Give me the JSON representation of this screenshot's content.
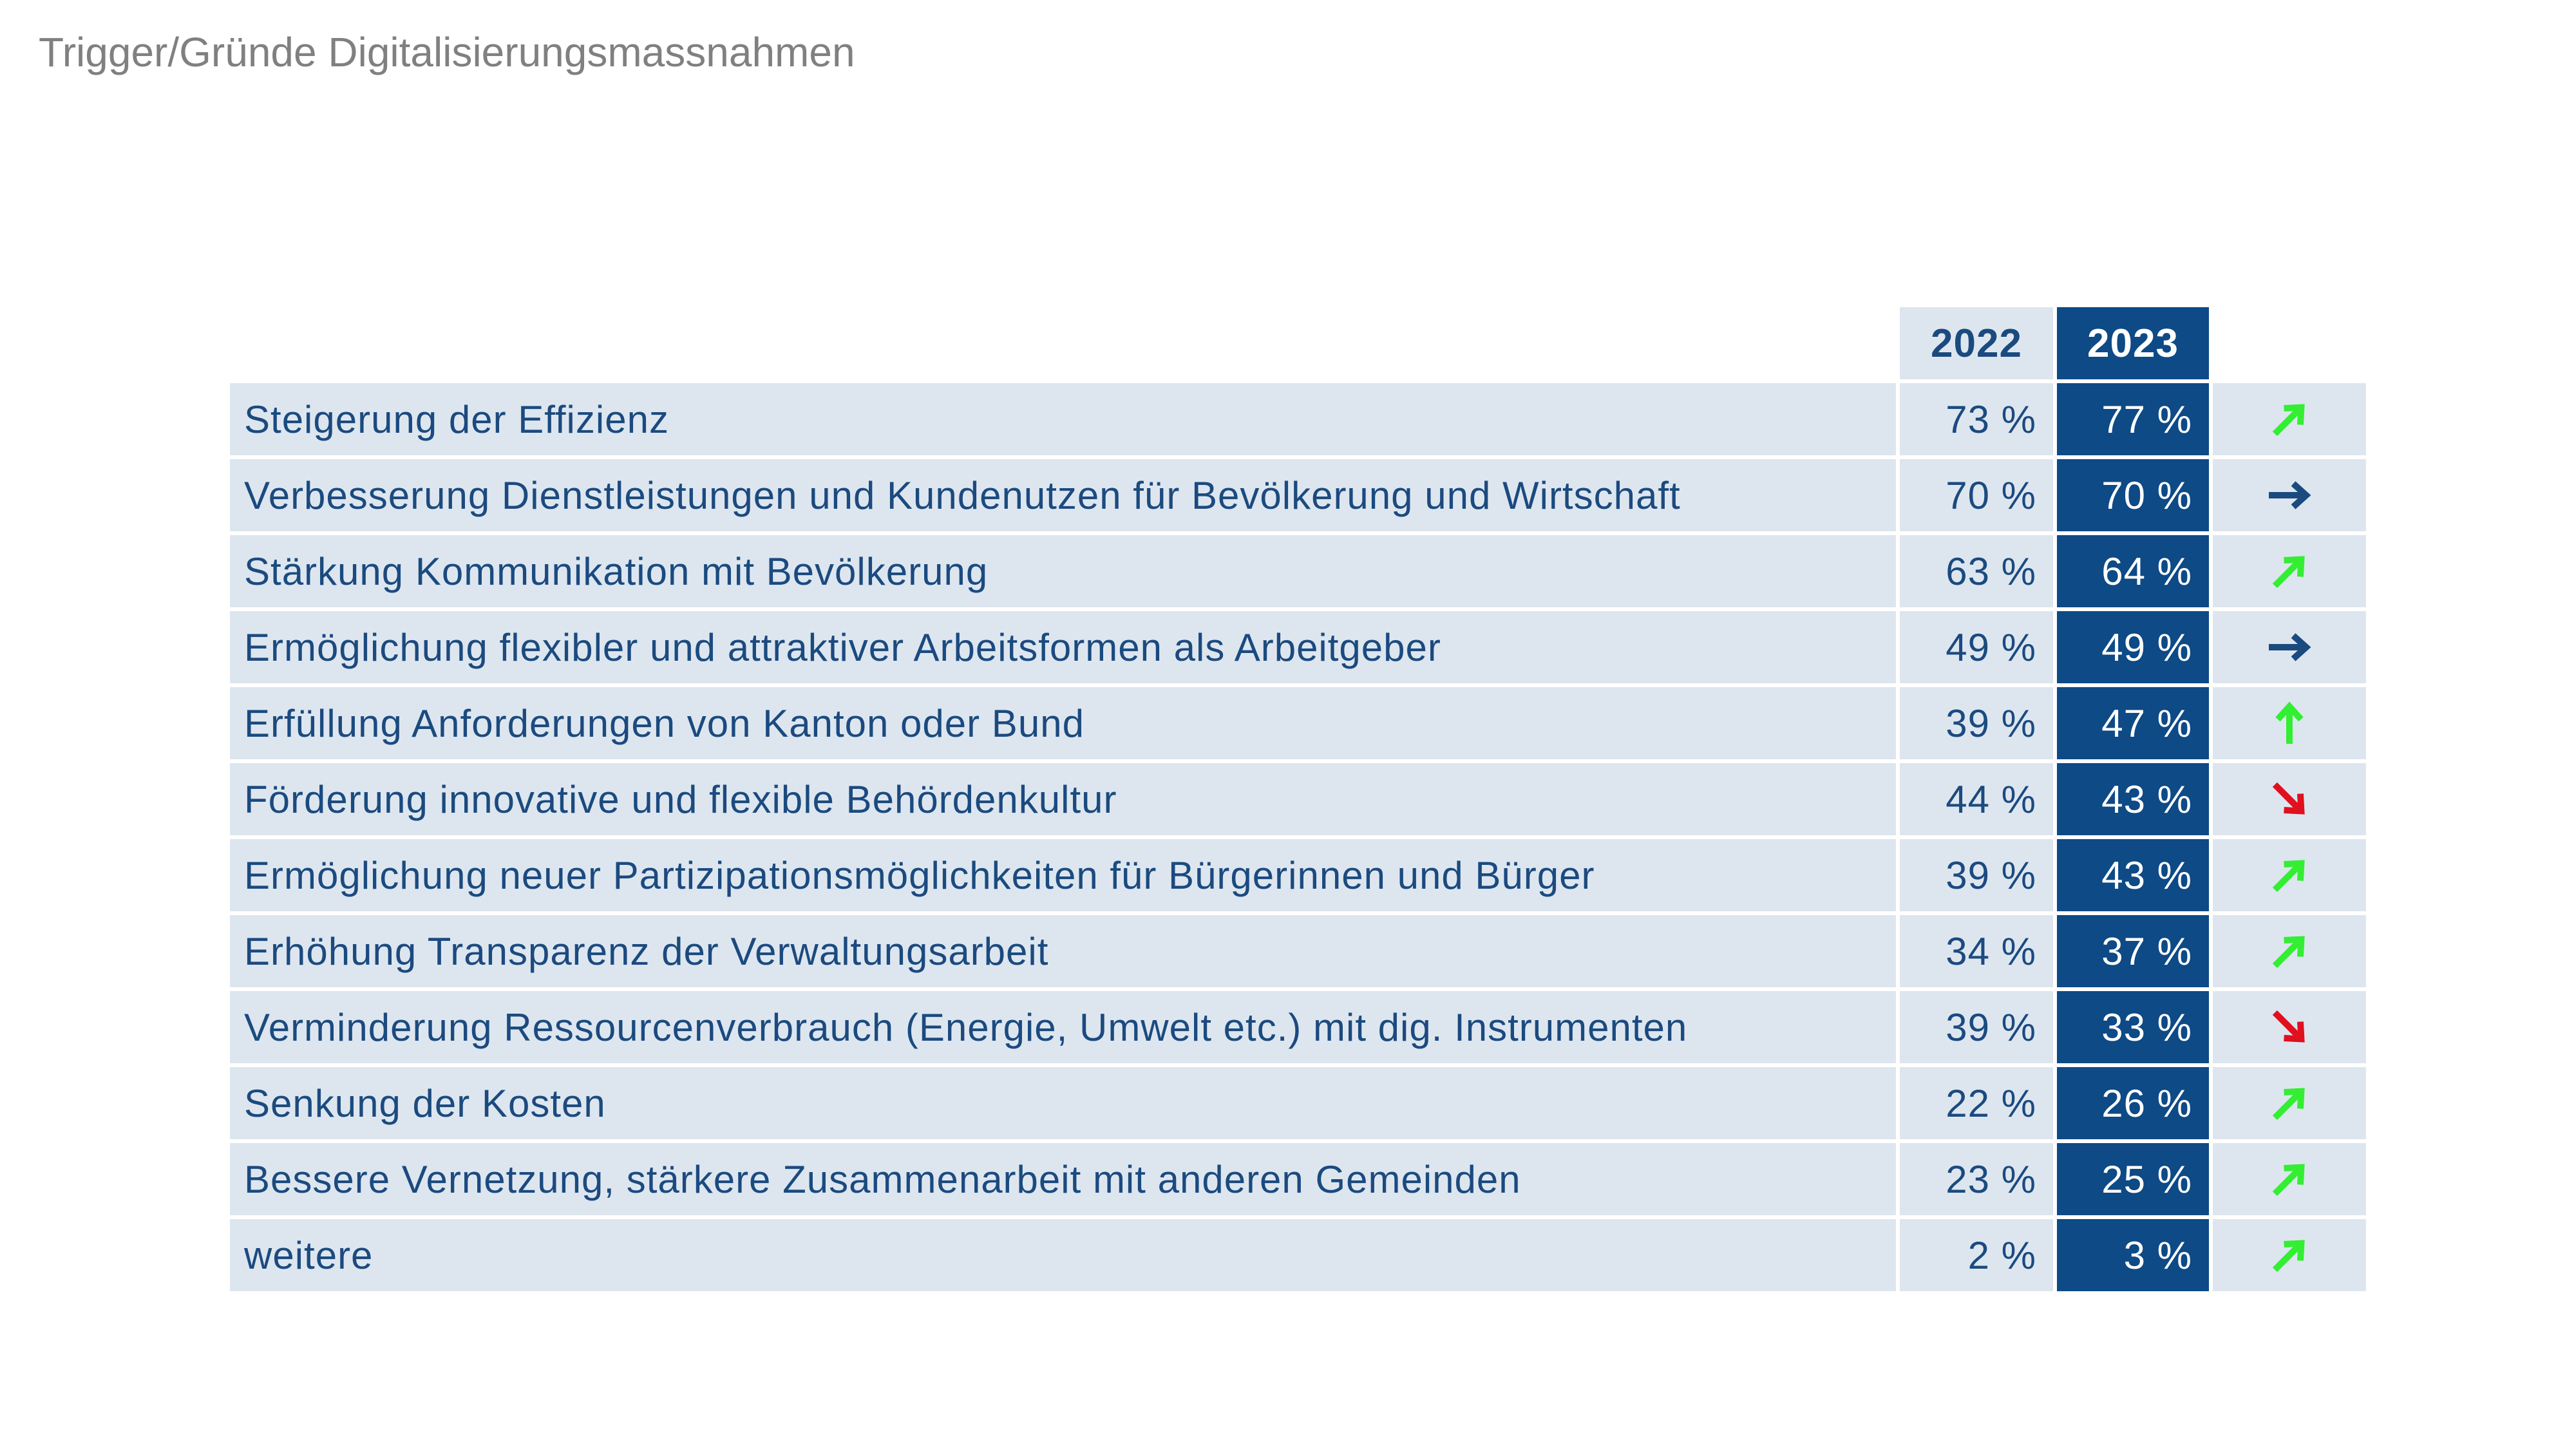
{
  "title": "Trigger/Gründe Digitalisierungsmassnahmen",
  "table": {
    "header": [
      "2022",
      "2023"
    ],
    "rows": [
      [
        "Steigerung der Effizienz",
        "73 %",
        "77 %"
      ],
      [
        "Verbesserung Dienstleistungen und Kundenutzen für Bevölkerung und Wirtschaft",
        "70 %",
        "70 %"
      ],
      [
        "Stärkung Kommunikation mit Bevölkerung",
        "63 %",
        "64 %"
      ],
      [
        "Ermöglichung flexibler und attraktiver Arbeitsformen als Arbeitgeber",
        "49 %",
        "49 %"
      ],
      [
        "Erfüllung Anforderungen von Kanton oder Bund",
        "39 %",
        "47 %"
      ],
      [
        "Förderung innovative und flexible Behördenkultur",
        "44 %",
        "43 %"
      ],
      [
        "Ermöglichung neuer Partizipationsmöglichkeiten für Bürgerinnen und Bürger",
        "39 %",
        "43 %"
      ],
      [
        "Erhöhung Transparenz der Verwaltungsarbeit",
        "34 %",
        "37 %"
      ],
      [
        "Verminderung Ressourcenverbrauch (Energie, Umwelt etc.) mit dig. Instrumenten",
        "39 %",
        "33 %"
      ],
      [
        "Senkung der Kosten",
        "22 %",
        "26 %"
      ],
      [
        "Bessere Vernetzung, stärkere Zusammenarbeit mit anderen Gemeinden",
        "23 %",
        "25 %"
      ],
      [
        "weitere",
        "2 %",
        "3 %"
      ]
    ]
  }
}
